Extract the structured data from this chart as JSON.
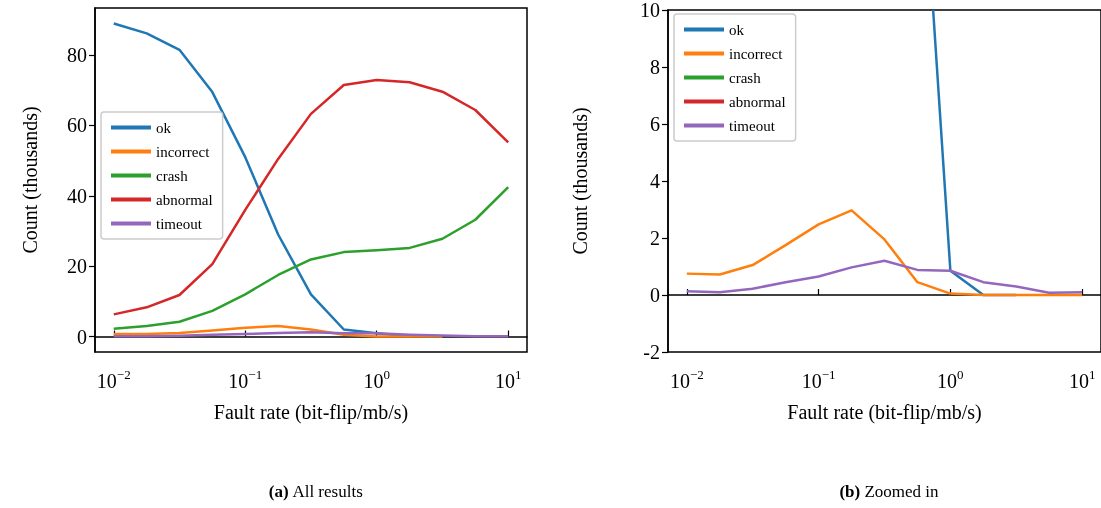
{
  "chart_data": [
    {
      "type": "line",
      "title": "(a) All results",
      "xlabel": "Fault rate (bit-flip/mb/s)",
      "ylabel": "Count (thousands)",
      "log": "x",
      "marker": "none",
      "legend": "center left",
      "x": [
        0.01,
        0.0178,
        0.0316,
        0.0562,
        0.1,
        0.178,
        0.316,
        0.562,
        1,
        1.78,
        3.16,
        5.62,
        10
      ],
      "xlim": [
        0.0072,
        13.9
      ],
      "xticks": [
        {
          "value": 0.01,
          "label": "10$^{−2}$"
        },
        {
          "value": 0.1,
          "label": "10$^{−1}$"
        },
        {
          "value": 1,
          "label": "10$^{0}$"
        },
        {
          "value": 10,
          "label": "10$^{1}$"
        }
      ],
      "ylim": [
        -4.4,
        93.4
      ],
      "yticks": [
        0,
        20,
        40,
        60,
        80
      ],
      "series": [
        {
          "name": "ok",
          "color": "#1f77b4",
          "values": [
            89,
            86.2,
            81.5,
            69.5,
            51,
            29,
            12,
            2,
            0.9,
            0,
            null,
            null,
            null
          ]
        },
        {
          "name": "incorrect",
          "color": "#ff7f0e",
          "values": [
            0.7,
            0.7,
            1,
            1.7,
            2.5,
            3,
            2,
            0.5,
            0,
            0,
            0,
            null,
            null
          ]
        },
        {
          "name": "crash",
          "color": "#2ca02c",
          "values": [
            2.2,
            3.0,
            4.2,
            7.3,
            12,
            17.5,
            21.9,
            24,
            24.5,
            25.2,
            27.8,
            33.2,
            42.5
          ]
        },
        {
          "name": "abnormal",
          "color": "#d62728",
          "values": [
            6.3,
            8.3,
            11.8,
            20.6,
            36,
            50.5,
            63.3,
            71.5,
            72.9,
            72.3,
            69.6,
            64.4,
            55.2
          ]
        },
        {
          "name": "timeout",
          "color": "#9467bd",
          "values": [
            0.1,
            0.1,
            0.2,
            0.5,
            0.7,
            1,
            1.2,
            0.9,
            0.9,
            0.5,
            0.3,
            0.1,
            0.1
          ]
        }
      ]
    },
    {
      "type": "line",
      "title": "(b) Zoomed in",
      "xlabel": "Fault rate (bit-flip/mb/s)",
      "ylabel": "Count (thousands)",
      "log": "x",
      "marker": "none",
      "legend": "top left",
      "x": [
        0.01,
        0.0178,
        0.0316,
        0.0562,
        0.1,
        0.178,
        0.316,
        0.562,
        1,
        1.78,
        3.16,
        5.62,
        10
      ],
      "xlim": [
        0.0072,
        13.9
      ],
      "xticks": [
        {
          "value": 0.01,
          "label": "10$^{−2}$"
        },
        {
          "value": 0.1,
          "label": "10$^{−1}$"
        },
        {
          "value": 1,
          "label": "10$^{0}$"
        },
        {
          "value": 10,
          "label": "10$^{1}$"
        }
      ],
      "ylim": [
        -2,
        10
      ],
      "yticks": [
        {
          "value": -2,
          "label": "-2"
        },
        0,
        2,
        4,
        6,
        8,
        10
      ],
      "series": [
        {
          "name": "ok",
          "color": "#1f77b4",
          "x": [
            0.74,
            1,
            1.78,
            3.16
          ],
          "values": [
            10,
            0.85,
            0,
            0
          ]
        },
        {
          "name": "incorrect",
          "color": "#ff7f0e",
          "values": [
            0.75,
            0.72,
            1.05,
            1.75,
            2.48,
            2.97,
            1.95,
            0.45,
            0.05,
            0,
            0,
            0,
            0
          ]
        },
        {
          "name": "crash",
          "color": "#2ca02c",
          "values": [
            null,
            null,
            null,
            null,
            null,
            null,
            null,
            null,
            null,
            null,
            null,
            null,
            null
          ]
        },
        {
          "name": "abnormal",
          "color": "#d62728",
          "values": [
            null,
            null,
            null,
            null,
            null,
            null,
            null,
            null,
            null,
            null,
            null,
            null,
            null
          ]
        },
        {
          "name": "timeout",
          "color": "#9467bd",
          "values": [
            0.13,
            0.1,
            0.22,
            0.45,
            0.65,
            0.97,
            1.2,
            0.88,
            0.85,
            0.45,
            0.3,
            0.08,
            0.1
          ]
        }
      ]
    }
  ]
}
